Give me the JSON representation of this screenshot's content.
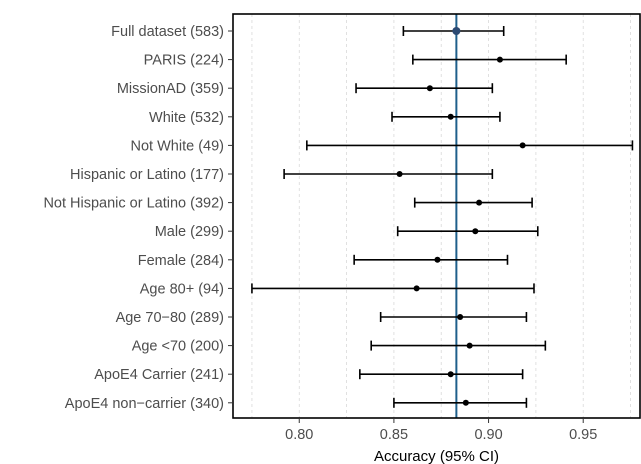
{
  "chart_data": {
    "type": "forest",
    "title": "",
    "xlabel": "Accuracy (95% CI)",
    "ylabel": "",
    "xlim": [
      0.765,
      0.98
    ],
    "xticks": [
      0.8,
      0.85,
      0.9,
      0.95
    ],
    "xtick_labels": [
      "0.80",
      "0.85",
      "0.90",
      "0.95"
    ],
    "grid": true,
    "reference_line": {
      "x": 0.883,
      "color": "#1f5f8b"
    },
    "marker_color": "#000000",
    "highlight_marker_color": "#2c4a73",
    "categories": [
      "Full dataset (583)",
      "PARIS (224)",
      "MissionAD (359)",
      "White (532)",
      "Not White (49)",
      "Hispanic or Latino (177)",
      "Not Hispanic or Latino (392)",
      "Male (299)",
      "Female (284)",
      "Age 80+ (94)",
      "Age 70−80 (289)",
      "Age <70 (200)",
      "ApoE4 Carrier (241)",
      "ApoE4 non−carrier (340)"
    ],
    "estimates": [
      0.883,
      0.906,
      0.869,
      0.88,
      0.918,
      0.853,
      0.895,
      0.893,
      0.873,
      0.862,
      0.885,
      0.89,
      0.88,
      0.888
    ],
    "lower": [
      0.855,
      0.86,
      0.83,
      0.849,
      0.804,
      0.792,
      0.861,
      0.852,
      0.829,
      0.775,
      0.843,
      0.838,
      0.832,
      0.85
    ],
    "upper": [
      0.908,
      0.941,
      0.902,
      0.906,
      0.976,
      0.902,
      0.923,
      0.926,
      0.91,
      0.924,
      0.92,
      0.93,
      0.918,
      0.92
    ]
  }
}
